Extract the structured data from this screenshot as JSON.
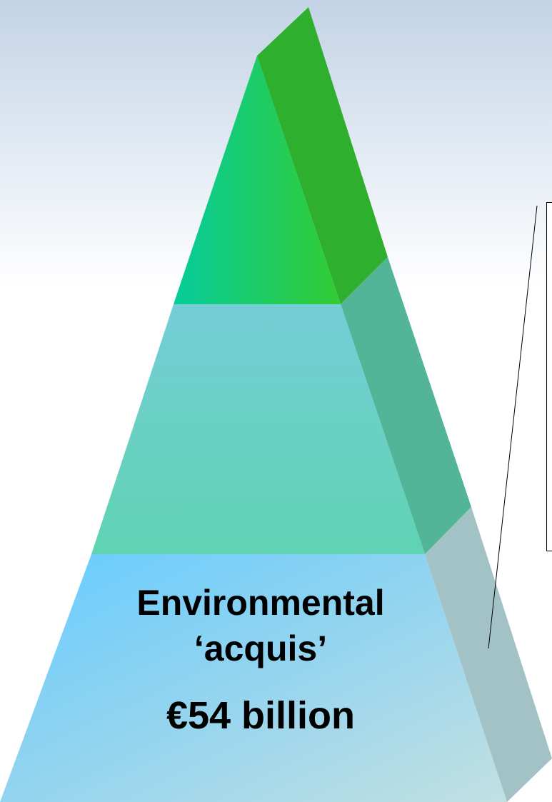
{
  "pyramid": {
    "base_tier": {
      "title": "Environmental",
      "subtitle": "‘acquis’",
      "amount": "€54 billion"
    }
  },
  "callout": {
    "text": ""
  },
  "colors": {
    "background_top": "#c3d3e6",
    "background_bottom": "#ffffff",
    "top_tier_left": "#06cc9b",
    "top_tier_right": "#33cc33",
    "top_tier_side": "#2eaf2e",
    "middle_tier": "#6ccfcc",
    "middle_tier_side": "#52b598",
    "base_tier_left": "#66ccff",
    "base_tier_right": "#b5dde6",
    "base_tier_side": "#a3c2c6",
    "callout_border": "#000000"
  }
}
